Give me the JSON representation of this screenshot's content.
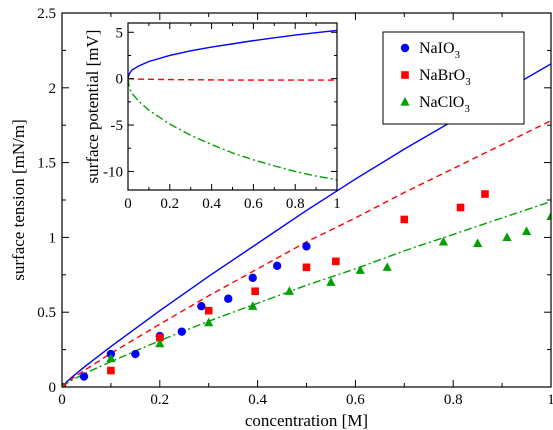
{
  "chart_data": [
    {
      "id": "main",
      "type": "scatter",
      "xlabel": "concentration [M]",
      "ylabel": "surface tension [mN/m]",
      "xlim": [
        0,
        1
      ],
      "ylim": [
        0,
        2.5
      ],
      "xticks": [
        "0",
        "0.2",
        "0.4",
        "0.6",
        "0.8",
        "1"
      ],
      "yticks": [
        "0",
        "0.5",
        "1",
        "1.5",
        "2",
        "2.5"
      ],
      "legend_position": "top-right",
      "series": [
        {
          "name": "NaIO3",
          "legend_main": "NaIO",
          "legend_sub": "3",
          "color": "#0000ff",
          "marker": "circle",
          "line_style": "solid",
          "points": [
            [
              0,
              0
            ],
            [
              0.045,
              0.07
            ],
            [
              0.1,
              0.22
            ],
            [
              0.15,
              0.22
            ],
            [
              0.2,
              0.34
            ],
            [
              0.245,
              0.37
            ],
            [
              0.285,
              0.54
            ],
            [
              0.34,
              0.59
            ],
            [
              0.39,
              0.73
            ],
            [
              0.44,
              0.81
            ],
            [
              0.5,
              0.94
            ]
          ],
          "fit": [
            [
              0,
              0
            ],
            [
              0.01,
              0.036
            ],
            [
              0.02,
              0.065
            ],
            [
              0.05,
              0.145
            ],
            [
              0.1,
              0.27
            ],
            [
              0.2,
              0.51
            ],
            [
              0.3,
              0.74
            ],
            [
              0.4,
              0.96
            ],
            [
              0.5,
              1.18
            ],
            [
              0.6,
              1.39
            ],
            [
              0.7,
              1.59
            ],
            [
              0.8,
              1.78
            ],
            [
              0.9,
              1.97
            ],
            [
              1,
              2.16
            ]
          ]
        },
        {
          "name": "NaBrO3",
          "legend_main": "NaBrO",
          "legend_sub": "3",
          "color": "#ff0000",
          "marker": "square",
          "line_style": "dashed",
          "points": [
            [
              0,
              0
            ],
            [
              0.1,
              0.11
            ],
            [
              0.2,
              0.33
            ],
            [
              0.3,
              0.51
            ],
            [
              0.395,
              0.64
            ],
            [
              0.5,
              0.8
            ],
            [
              0.56,
              0.84
            ],
            [
              0.7,
              1.12
            ],
            [
              0.815,
              1.2
            ],
            [
              0.865,
              1.29
            ]
          ],
          "fit": [
            [
              0,
              0
            ],
            [
              0.01,
              0.03
            ],
            [
              0.02,
              0.055
            ],
            [
              0.05,
              0.12
            ],
            [
              0.1,
              0.225
            ],
            [
              0.2,
              0.42
            ],
            [
              0.3,
              0.61
            ],
            [
              0.4,
              0.79
            ],
            [
              0.5,
              0.97
            ],
            [
              0.6,
              1.13
            ],
            [
              0.7,
              1.3
            ],
            [
              0.8,
              1.46
            ],
            [
              0.9,
              1.62
            ],
            [
              1,
              1.78
            ]
          ]
        },
        {
          "name": "NaClO3",
          "legend_main": "NaClO",
          "legend_sub": "3",
          "color": "#00a000",
          "marker": "triangle",
          "line_style": "dashdot",
          "points": [
            [
              0,
              0
            ],
            [
              0.1,
              0.19
            ],
            [
              0.2,
              0.29
            ],
            [
              0.3,
              0.43
            ],
            [
              0.39,
              0.54
            ],
            [
              0.465,
              0.64
            ],
            [
              0.55,
              0.7
            ],
            [
              0.61,
              0.78
            ],
            [
              0.665,
              0.8
            ],
            [
              0.78,
              0.97
            ],
            [
              0.85,
              0.96
            ],
            [
              0.91,
              1.0
            ],
            [
              0.95,
              1.04
            ],
            [
              1,
              1.14
            ]
          ],
          "fit": [
            [
              0,
              0
            ],
            [
              0.01,
              0.025
            ],
            [
              0.02,
              0.045
            ],
            [
              0.05,
              0.095
            ],
            [
              0.1,
              0.17
            ],
            [
              0.2,
              0.31
            ],
            [
              0.3,
              0.44
            ],
            [
              0.4,
              0.56
            ],
            [
              0.5,
              0.68
            ],
            [
              0.6,
              0.79
            ],
            [
              0.7,
              0.91
            ],
            [
              0.8,
              1.02
            ],
            [
              0.9,
              1.13
            ],
            [
              1,
              1.24
            ]
          ]
        }
      ]
    },
    {
      "id": "inset",
      "type": "line",
      "xlabel": "",
      "ylabel": "surface potential [mV]",
      "xlim": [
        0,
        1
      ],
      "ylim": [
        -12,
        6
      ],
      "xticks": [
        "0",
        "0.2",
        "0.4",
        "0.6",
        "0.8",
        "1"
      ],
      "yticks": [
        "-10",
        "-5",
        "0",
        "5"
      ],
      "series": [
        {
          "name": "NaIO3",
          "color": "#0000ff",
          "line_style": "solid",
          "points": [
            [
              0,
              0
            ],
            [
              0.005,
              0.45
            ],
            [
              0.01,
              0.65
            ],
            [
              0.02,
              0.95
            ],
            [
              0.05,
              1.35
            ],
            [
              0.1,
              1.85
            ],
            [
              0.2,
              2.5
            ],
            [
              0.3,
              3.0
            ],
            [
              0.4,
              3.4
            ],
            [
              0.5,
              3.75
            ],
            [
              0.6,
              4.1
            ],
            [
              0.7,
              4.4
            ],
            [
              0.8,
              4.7
            ],
            [
              0.9,
              4.95
            ],
            [
              1,
              5.2
            ]
          ]
        },
        {
          "name": "NaBrO3",
          "color": "#ff0000",
          "line_style": "dashed",
          "points": [
            [
              0,
              0
            ],
            [
              0.05,
              -0.05
            ],
            [
              0.2,
              -0.1
            ],
            [
              0.5,
              -0.15
            ],
            [
              0.8,
              -0.15
            ],
            [
              1,
              -0.15
            ]
          ]
        },
        {
          "name": "NaClO3",
          "color": "#00a000",
          "line_style": "dashdot",
          "points": [
            [
              0,
              0
            ],
            [
              0.005,
              -0.8
            ],
            [
              0.01,
              -1.2
            ],
            [
              0.02,
              -1.6
            ],
            [
              0.05,
              -2.4
            ],
            [
              0.1,
              -3.4
            ],
            [
              0.2,
              -4.9
            ],
            [
              0.3,
              -6.1
            ],
            [
              0.4,
              -7.1
            ],
            [
              0.5,
              -8.0
            ],
            [
              0.6,
              -8.75
            ],
            [
              0.7,
              -9.4
            ],
            [
              0.8,
              -10.0
            ],
            [
              0.9,
              -10.5
            ],
            [
              1,
              -10.9
            ]
          ]
        }
      ]
    }
  ]
}
